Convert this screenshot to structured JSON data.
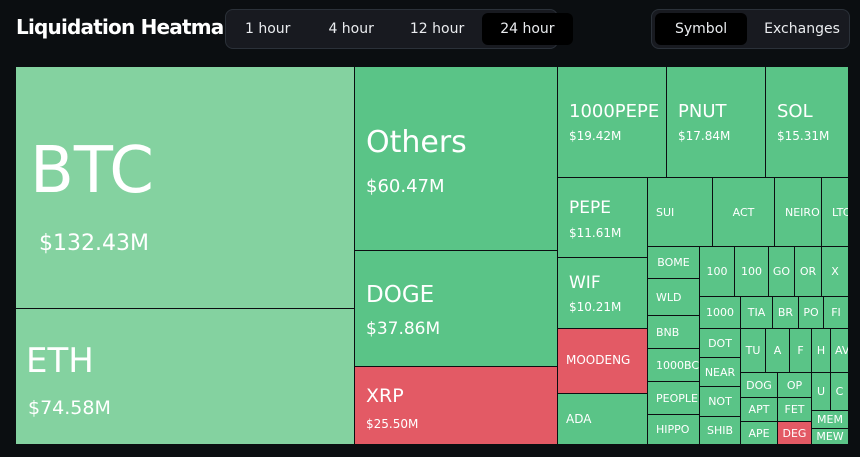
{
  "header": {
    "title": "Liquidation Heatmap",
    "time_tabs": [
      "1 hour",
      "4 hour",
      "12 hour",
      "24 hour"
    ],
    "active_time_tab": "24 hour",
    "view_tabs": [
      "Symbol",
      "Exchanges"
    ],
    "active_view_tab": "Symbol"
  },
  "colors": {
    "long_liquidation_light": "#84d2a0",
    "long_liquidation": "#5ac487",
    "short_liquidation": "#e35a65",
    "background": "#0b0e11"
  },
  "tiles": {
    "btc": {
      "symbol": "BTC",
      "value": "$132.43M"
    },
    "eth": {
      "symbol": "ETH",
      "value": "$74.58M"
    },
    "others": {
      "symbol": "Others",
      "value": "$60.47M"
    },
    "doge": {
      "symbol": "DOGE",
      "value": "$37.86M"
    },
    "xrp": {
      "symbol": "XRP",
      "value": "$25.50M"
    },
    "pepe1000": {
      "symbol": "1000PEPE",
      "value": "$19.42M"
    },
    "pnut": {
      "symbol": "PNUT",
      "value": "$17.84M"
    },
    "sol": {
      "symbol": "SOL",
      "value": "$15.31M"
    },
    "pepe": {
      "symbol": "PEPE",
      "value": "$11.61M"
    },
    "wif": {
      "symbol": "WIF",
      "value": "$10.21M"
    },
    "moodeng": {
      "symbol": "MOODENG"
    },
    "ada": {
      "symbol": "ADA"
    },
    "sui": {
      "symbol": "SUI"
    },
    "act": {
      "symbol": "ACT"
    },
    "neiro": {
      "symbol": "NEIRO"
    },
    "ltc": {
      "symbol": "LTC"
    },
    "bome": {
      "symbol": "BOME"
    },
    "wld": {
      "symbol": "WLD"
    },
    "bnb": {
      "symbol": "BNB"
    },
    "bonk1000": {
      "symbol": "1000BC"
    },
    "people": {
      "symbol": "PEOPLE"
    },
    "hippo": {
      "symbol": "HIPPO"
    },
    "t100a": {
      "symbol": "100"
    },
    "t100b": {
      "symbol": "100"
    },
    "go": {
      "symbol": "GO"
    },
    "or": {
      "symbol": "OR"
    },
    "x": {
      "symbol": "X"
    },
    "t1000": {
      "symbol": "1000"
    },
    "tia": {
      "symbol": "TIA"
    },
    "br": {
      "symbol": "BR"
    },
    "po": {
      "symbol": "PO"
    },
    "fi": {
      "symbol": "FI"
    },
    "dot": {
      "symbol": "DOT"
    },
    "near": {
      "symbol": "NEAR"
    },
    "not": {
      "symbol": "NOT"
    },
    "shib": {
      "symbol": "SHIB"
    },
    "tu": {
      "symbol": "TU"
    },
    "a": {
      "symbol": "A"
    },
    "f": {
      "symbol": "F"
    },
    "h": {
      "symbol": "H"
    },
    "av": {
      "symbol": "AV"
    },
    "dog": {
      "symbol": "DOG"
    },
    "op": {
      "symbol": "OP"
    },
    "u": {
      "symbol": "U"
    },
    "c": {
      "symbol": "C"
    },
    "apt": {
      "symbol": "APT"
    },
    "fet": {
      "symbol": "FET"
    },
    "mem": {
      "symbol": "MEM"
    },
    "ape": {
      "symbol": "APE"
    },
    "deg": {
      "symbol": "DEG"
    },
    "mew": {
      "symbol": "MEW"
    }
  }
}
